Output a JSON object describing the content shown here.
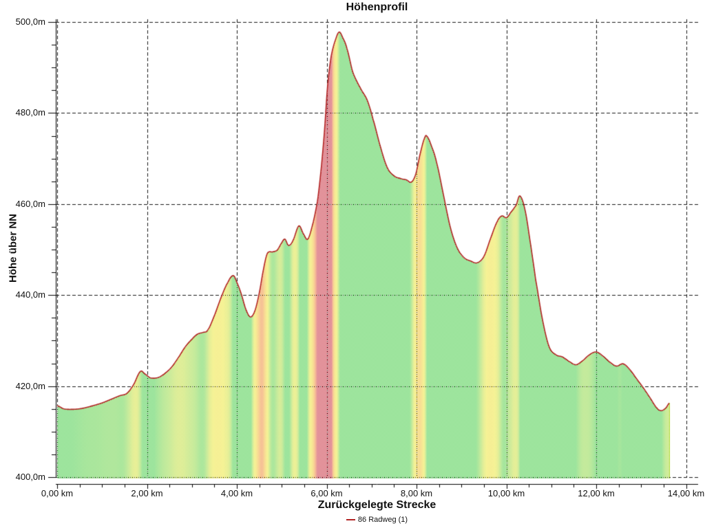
{
  "title": "Höhenprofil",
  "y_axis": {
    "label": "Höhe über NN",
    "unit": "m",
    "min": 400,
    "max": 500,
    "major_step": 20,
    "minor_step": 5,
    "ticks": [
      {
        "value": 500,
        "label": "500,0m"
      },
      {
        "value": 480,
        "label": "480,0m"
      },
      {
        "value": 460,
        "label": "460,0m"
      },
      {
        "value": 440,
        "label": "440,0m"
      },
      {
        "value": 420,
        "label": "420,0m"
      },
      {
        "value": 400,
        "label": "400,0m"
      }
    ]
  },
  "x_axis": {
    "label": "Zurückgelegte Strecke",
    "unit": "km",
    "min": 0,
    "max": 14,
    "major_step": 2,
    "minor_step": 0.5,
    "ticks": [
      {
        "value": 0,
        "label": "0,00 km"
      },
      {
        "value": 2,
        "label": "2,00 km"
      },
      {
        "value": 4,
        "label": "4,00 km"
      },
      {
        "value": 6,
        "label": "6,00 km"
      },
      {
        "value": 8,
        "label": "8,00 km"
      },
      {
        "value": 10,
        "label": "10,00 km"
      },
      {
        "value": 12,
        "label": "12,00 km"
      },
      {
        "value": 14,
        "label": "14,00 km"
      }
    ]
  },
  "legend": {
    "position": "bottom",
    "items": [
      {
        "label": "86 Radweg (1)",
        "color": "#b22222"
      }
    ]
  },
  "chart_data": {
    "type": "area",
    "title": "Höhenprofil",
    "xlabel": "Zurückgelegte Strecke",
    "ylabel": "Höhe über NN",
    "xlim": [
      0,
      14
    ],
    "ylim": [
      400,
      500
    ],
    "grid": "dashed",
    "legend_position": "bottom",
    "fill_style": "checker-dither-50-white",
    "grid_color": "#161616",
    "series": [
      {
        "name": "86 Radweg (1)",
        "line_color": "#b22222",
        "x_unit": "km",
        "y_unit": "m",
        "points": [
          [
            0.0,
            415.7
          ],
          [
            0.15,
            415.0
          ],
          [
            0.35,
            414.9
          ],
          [
            0.55,
            415.1
          ],
          [
            0.8,
            415.7
          ],
          [
            1.0,
            416.3
          ],
          [
            1.2,
            417.1
          ],
          [
            1.4,
            417.9
          ],
          [
            1.55,
            418.4
          ],
          [
            1.7,
            420.3
          ],
          [
            1.85,
            423.2
          ],
          [
            1.95,
            422.7
          ],
          [
            2.08,
            421.8
          ],
          [
            2.25,
            421.9
          ],
          [
            2.4,
            422.8
          ],
          [
            2.55,
            424.2
          ],
          [
            2.7,
            426.3
          ],
          [
            2.85,
            428.6
          ],
          [
            3.0,
            430.3
          ],
          [
            3.12,
            431.4
          ],
          [
            3.25,
            431.8
          ],
          [
            3.35,
            432.3
          ],
          [
            3.5,
            435.5
          ],
          [
            3.65,
            439.5
          ],
          [
            3.8,
            442.8
          ],
          [
            3.92,
            444.3
          ],
          [
            4.0,
            442.8
          ],
          [
            4.1,
            440.2
          ],
          [
            4.2,
            436.9
          ],
          [
            4.3,
            435.2
          ],
          [
            4.4,
            436.5
          ],
          [
            4.5,
            440.5
          ],
          [
            4.6,
            446.0
          ],
          [
            4.68,
            449.2
          ],
          [
            4.8,
            449.5
          ],
          [
            4.9,
            449.9
          ],
          [
            5.0,
            451.5
          ],
          [
            5.07,
            452.3
          ],
          [
            5.15,
            450.9
          ],
          [
            5.25,
            452.0
          ],
          [
            5.38,
            455.2
          ],
          [
            5.48,
            453.5
          ],
          [
            5.58,
            452.3
          ],
          [
            5.7,
            456.0
          ],
          [
            5.8,
            461.0
          ],
          [
            5.88,
            468.0
          ],
          [
            5.95,
            476.0
          ],
          [
            6.02,
            486.0
          ],
          [
            6.1,
            492.5
          ],
          [
            6.2,
            496.2
          ],
          [
            6.28,
            497.8
          ],
          [
            6.36,
            496.5
          ],
          [
            6.45,
            494.2
          ],
          [
            6.58,
            489.0
          ],
          [
            6.75,
            485.5
          ],
          [
            6.9,
            482.9
          ],
          [
            7.03,
            478.7
          ],
          [
            7.2,
            472.5
          ],
          [
            7.35,
            468.0
          ],
          [
            7.5,
            466.2
          ],
          [
            7.65,
            465.6
          ],
          [
            7.78,
            465.3
          ],
          [
            7.88,
            464.8
          ],
          [
            7.98,
            466.5
          ],
          [
            8.08,
            471.0
          ],
          [
            8.18,
            474.5
          ],
          [
            8.23,
            474.9
          ],
          [
            8.33,
            472.8
          ],
          [
            8.45,
            469.0
          ],
          [
            8.6,
            462.0
          ],
          [
            8.75,
            455.0
          ],
          [
            8.9,
            450.5
          ],
          [
            9.05,
            448.3
          ],
          [
            9.2,
            447.5
          ],
          [
            9.35,
            447.1
          ],
          [
            9.5,
            448.5
          ],
          [
            9.65,
            452.5
          ],
          [
            9.8,
            456.2
          ],
          [
            9.9,
            457.4
          ],
          [
            10.0,
            457.0
          ],
          [
            10.1,
            458.2
          ],
          [
            10.22,
            459.8
          ],
          [
            10.3,
            461.8
          ],
          [
            10.42,
            458.5
          ],
          [
            10.55,
            450.5
          ],
          [
            10.65,
            443.5
          ],
          [
            10.8,
            434.8
          ],
          [
            10.95,
            428.7
          ],
          [
            11.1,
            426.9
          ],
          [
            11.25,
            426.4
          ],
          [
            11.4,
            425.4
          ],
          [
            11.55,
            424.7
          ],
          [
            11.7,
            425.6
          ],
          [
            11.85,
            426.9
          ],
          [
            12.0,
            427.5
          ],
          [
            12.15,
            426.6
          ],
          [
            12.3,
            425.3
          ],
          [
            12.45,
            424.4
          ],
          [
            12.6,
            424.9
          ],
          [
            12.75,
            423.6
          ],
          [
            12.9,
            421.6
          ],
          [
            13.05,
            419.6
          ],
          [
            13.2,
            417.4
          ],
          [
            13.35,
            415.2
          ],
          [
            13.45,
            414.6
          ],
          [
            13.55,
            415.2
          ],
          [
            13.63,
            416.3
          ]
        ]
      }
    ],
    "slope_color_stops": [
      {
        "grade": 0.0,
        "color": [
          60,
          202,
          60
        ]
      },
      {
        "grade": 0.8,
        "color": [
          134,
          214,
          58
        ]
      },
      {
        "grade": 1.6,
        "color": [
          198,
          222,
          50
        ]
      },
      {
        "grade": 2.4,
        "color": [
          236,
          230,
          44
        ]
      },
      {
        "grade": 3.5,
        "color": [
          240,
          208,
          42
        ]
      },
      {
        "grade": 4.5,
        "color": [
          242,
          168,
          42
        ]
      },
      {
        "grade": 5.5,
        "color": [
          232,
          102,
          48
        ]
      },
      {
        "grade": 6.5,
        "color": [
          198,
          38,
          54
        ]
      }
    ]
  }
}
